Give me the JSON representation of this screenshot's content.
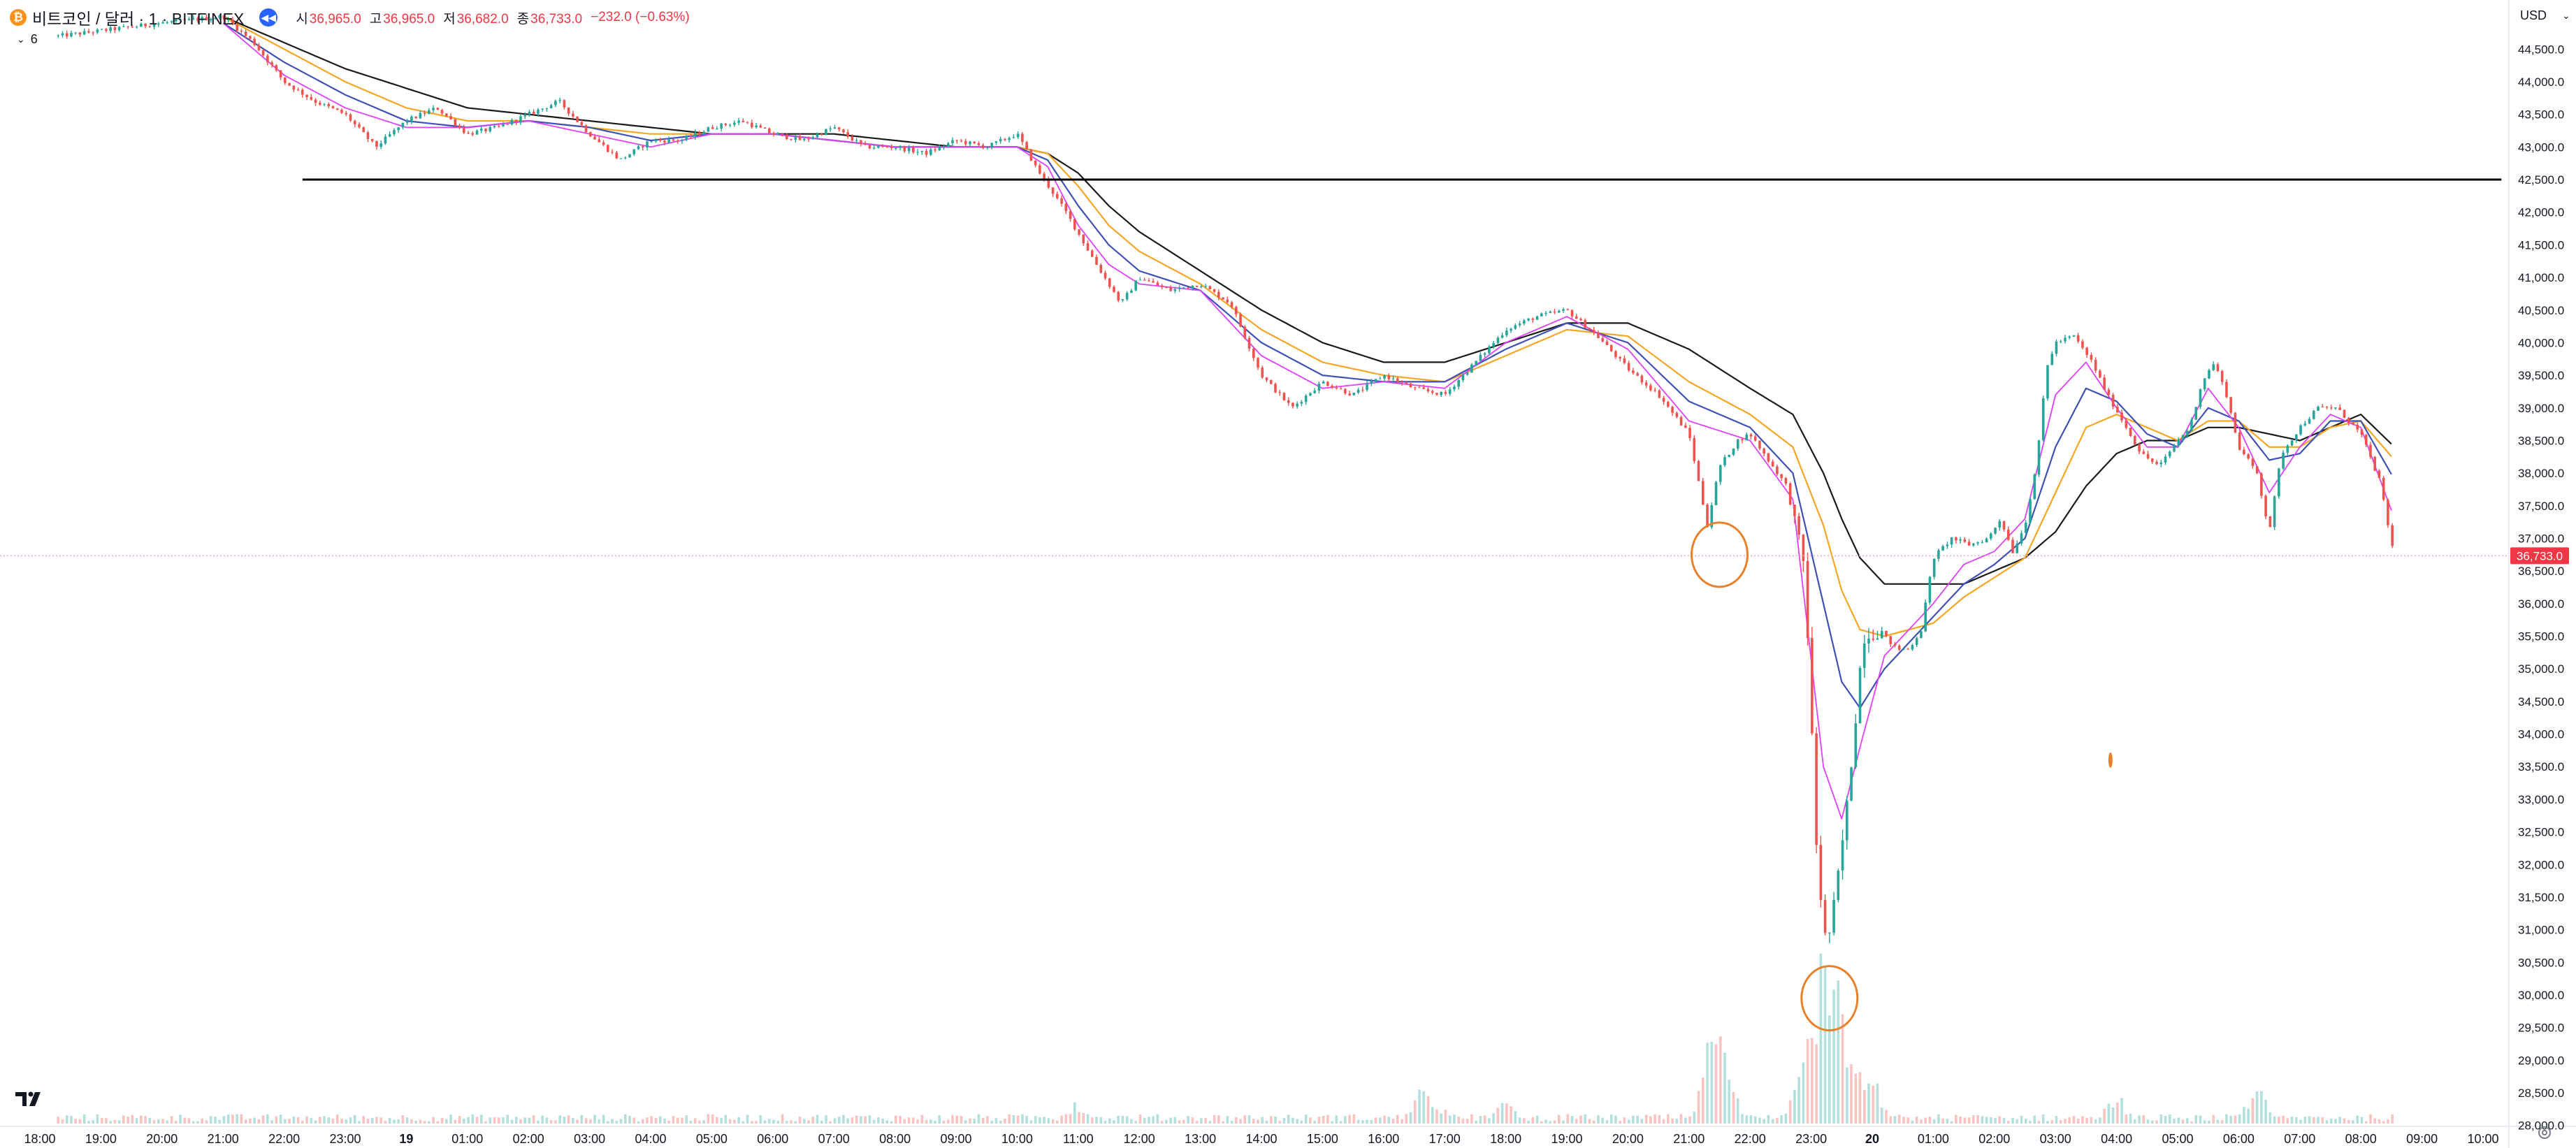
{
  "header": {
    "symbol": "비트코인 / 달러 · 1 · BITFINEX",
    "coin_glyph": "₿",
    "ohlc": [
      {
        "key": "시",
        "value": "36,965.0"
      },
      {
        "key": "고",
        "value": "36,965.0"
      },
      {
        "key": "저",
        "value": "36,682.0"
      },
      {
        "key": "종",
        "value": "36,733.0"
      }
    ],
    "change": "−232.0 (−0.63%)",
    "indicator_count": "6",
    "currency": "USD"
  },
  "colors": {
    "up": "#26a69a",
    "down": "#ef5350",
    "ema_fast": "#e040fb",
    "ema_mid": "#3f51b5",
    "ema_slow": "#f5a623",
    "ema_long": "#1a1a1a",
    "level_line": "#000000",
    "annotation": "#e8802c",
    "price_label": "#f23645"
  },
  "chart_data": {
    "type": "line",
    "title": "",
    "y_ticks": [
      "28,000.0",
      "28,500.0",
      "29,000.0",
      "29,500.0",
      "30,000.0",
      "30,500.0",
      "31,000.0",
      "31,500.0",
      "32,000.0",
      "32,500.0",
      "33,000.0",
      "33,500.0",
      "34,000.0",
      "34,500.0",
      "35,000.0",
      "35,500.0",
      "36,000.0",
      "36,500.0",
      "37,000.0",
      "37,500.0",
      "38,000.0",
      "38,500.0",
      "39,000.0",
      "39,500.0",
      "40,000.0",
      "40,500.0",
      "41,000.0",
      "41,500.0",
      "42,000.0",
      "42,500.0",
      "43,000.0",
      "43,500.0",
      "44,000.0",
      "44,500.0"
    ],
    "x_ticks": [
      "18:00",
      "19:00",
      "20:00",
      "21:00",
      "22:00",
      "23:00",
      "19",
      "01:00",
      "02:00",
      "03:00",
      "04:00",
      "05:00",
      "06:00",
      "07:00",
      "08:00",
      "09:00",
      "10:00",
      "11:00",
      "12:00",
      "13:00",
      "14:00",
      "15:00",
      "16:00",
      "17:00",
      "18:00",
      "19:00",
      "20:00",
      "21:00",
      "22:00",
      "23:00",
      "20",
      "01:00",
      "02:00",
      "03:00",
      "04:00",
      "05:00",
      "06:00",
      "07:00",
      "08:00",
      "09:00",
      "10:00"
    ],
    "ylim": [
      27900,
      44750
    ],
    "price_anchors": [
      [
        0.3,
        44700
      ],
      [
        2,
        44900
      ],
      [
        3,
        45000
      ],
      [
        3.5,
        44600
      ],
      [
        4,
        44000
      ],
      [
        4.5,
        43700
      ],
      [
        5,
        43500
      ],
      [
        5.5,
        43000
      ],
      [
        6,
        43400
      ],
      [
        6.5,
        43600
      ],
      [
        7,
        43200
      ],
      [
        7.5,
        43300
      ],
      [
        8,
        43500
      ],
      [
        8.5,
        43700
      ],
      [
        9,
        43200
      ],
      [
        9.5,
        42800
      ],
      [
        10,
        43100
      ],
      [
        10.5,
        43100
      ],
      [
        11,
        43300
      ],
      [
        11.5,
        43400
      ],
      [
        12,
        43200
      ],
      [
        12.5,
        43100
      ],
      [
        13,
        43300
      ],
      [
        13.5,
        43000
      ],
      [
        14,
        43000
      ],
      [
        14.5,
        42900
      ],
      [
        15,
        43100
      ],
      [
        15.5,
        43000
      ],
      [
        16,
        43200
      ],
      [
        16.3,
        42700
      ],
      [
        16.8,
        42000
      ],
      [
        17.3,
        41200
      ],
      [
        17.7,
        40600
      ],
      [
        18,
        41000
      ],
      [
        18.5,
        40800
      ],
      [
        19,
        40900
      ],
      [
        19.5,
        40600
      ],
      [
        20,
        39500
      ],
      [
        20.5,
        39000
      ],
      [
        21,
        39400
      ],
      [
        21.5,
        39200
      ],
      [
        22,
        39500
      ],
      [
        22.5,
        39300
      ],
      [
        23,
        39200
      ],
      [
        23.5,
        39700
      ],
      [
        24,
        40200
      ],
      [
        24.5,
        40400
      ],
      [
        25,
        40500
      ],
      [
        25.5,
        40100
      ],
      [
        26,
        39600
      ],
      [
        26.5,
        39200
      ],
      [
        27,
        38600
      ],
      [
        27.3,
        37200
      ],
      [
        27.5,
        38100
      ],
      [
        27.8,
        38500
      ],
      [
        28,
        38600
      ],
      [
        28.3,
        38200
      ],
      [
        28.6,
        37800
      ],
      [
        28.9,
        36500
      ],
      [
        29.1,
        32000
      ],
      [
        29.25,
        30700
      ],
      [
        29.4,
        31500
      ],
      [
        29.6,
        33000
      ],
      [
        29.85,
        35500
      ],
      [
        30.1,
        35600
      ],
      [
        30.4,
        35300
      ],
      [
        30.6,
        35300
      ],
      [
        30.8,
        35600
      ],
      [
        31.0,
        36700
      ],
      [
        31.3,
        37000
      ],
      [
        31.6,
        36900
      ],
      [
        31.9,
        37000
      ],
      [
        32.1,
        37300
      ],
      [
        32.3,
        36800
      ],
      [
        32.5,
        37200
      ],
      [
        32.7,
        38200
      ],
      [
        32.85,
        39600
      ],
      [
        33,
        40000
      ],
      [
        33.3,
        40100
      ],
      [
        33.6,
        39700
      ],
      [
        33.85,
        39200
      ],
      [
        34.1,
        38800
      ],
      [
        34.4,
        38300
      ],
      [
        34.7,
        38100
      ],
      [
        35,
        38500
      ],
      [
        35.2,
        38700
      ],
      [
        35.4,
        39400
      ],
      [
        35.6,
        39700
      ],
      [
        35.8,
        39200
      ],
      [
        36,
        38400
      ],
      [
        36.3,
        38000
      ],
      [
        36.5,
        37100
      ],
      [
        36.7,
        38300
      ],
      [
        37,
        38700
      ],
      [
        37.3,
        39000
      ],
      [
        37.6,
        39000
      ],
      [
        38,
        38600
      ],
      [
        38.3,
        37900
      ],
      [
        38.55,
        36700
      ]
    ],
    "ema_fast_anchors": [
      [
        3,
        44900
      ],
      [
        4,
        44100
      ],
      [
        5,
        43600
      ],
      [
        6,
        43300
      ],
      [
        7,
        43300
      ],
      [
        8,
        43400
      ],
      [
        9,
        43200
      ],
      [
        10,
        43000
      ],
      [
        11,
        43200
      ],
      [
        12,
        43200
      ],
      [
        13,
        43100
      ],
      [
        14,
        43000
      ],
      [
        15,
        43000
      ],
      [
        16,
        43000
      ],
      [
        16.5,
        42700
      ],
      [
        17,
        41800
      ],
      [
        17.5,
        41200
      ],
      [
        18,
        40900
      ],
      [
        19,
        40800
      ],
      [
        20,
        39800
      ],
      [
        21,
        39300
      ],
      [
        22,
        39400
      ],
      [
        23,
        39300
      ],
      [
        24,
        40000
      ],
      [
        25,
        40400
      ],
      [
        26,
        39900
      ],
      [
        27,
        38800
      ],
      [
        28,
        38500
      ],
      [
        28.7,
        37600
      ],
      [
        29.2,
        33500
      ],
      [
        29.5,
        32700
      ],
      [
        29.8,
        33800
      ],
      [
        30.2,
        35200
      ],
      [
        31,
        36000
      ],
      [
        31.5,
        36600
      ],
      [
        32,
        36800
      ],
      [
        32.5,
        37300
      ],
      [
        33,
        39200
      ],
      [
        33.5,
        39700
      ],
      [
        34,
        39000
      ],
      [
        34.5,
        38400
      ],
      [
        35,
        38400
      ],
      [
        35.5,
        39300
      ],
      [
        36,
        38700
      ],
      [
        36.5,
        37700
      ],
      [
        37,
        38400
      ],
      [
        37.5,
        38900
      ],
      [
        38,
        38700
      ],
      [
        38.55,
        37300
      ]
    ],
    "ema_mid_anchors": [
      [
        3,
        44900
      ],
      [
        4,
        44300
      ],
      [
        5,
        43800
      ],
      [
        6,
        43400
      ],
      [
        7,
        43300
      ],
      [
        8,
        43400
      ],
      [
        9,
        43300
      ],
      [
        10,
        43100
      ],
      [
        11,
        43200
      ],
      [
        12,
        43200
      ],
      [
        13,
        43100
      ],
      [
        14,
        43000
      ],
      [
        15,
        43000
      ],
      [
        16,
        43000
      ],
      [
        16.5,
        42800
      ],
      [
        17,
        42100
      ],
      [
        17.5,
        41500
      ],
      [
        18,
        41100
      ],
      [
        19,
        40800
      ],
      [
        20,
        40000
      ],
      [
        21,
        39500
      ],
      [
        22,
        39400
      ],
      [
        23,
        39400
      ],
      [
        24,
        39900
      ],
      [
        25,
        40300
      ],
      [
        26,
        40000
      ],
      [
        27,
        39100
      ],
      [
        28,
        38700
      ],
      [
        28.7,
        38000
      ],
      [
        29.2,
        36000
      ],
      [
        29.5,
        34800
      ],
      [
        29.8,
        34400
      ],
      [
        30.2,
        35000
      ],
      [
        31,
        35800
      ],
      [
        31.5,
        36300
      ],
      [
        32,
        36600
      ],
      [
        32.5,
        37000
      ],
      [
        33,
        38400
      ],
      [
        33.5,
        39300
      ],
      [
        34,
        39100
      ],
      [
        34.5,
        38600
      ],
      [
        35,
        38400
      ],
      [
        35.5,
        39000
      ],
      [
        36,
        38800
      ],
      [
        36.5,
        38200
      ],
      [
        37,
        38300
      ],
      [
        37.5,
        38800
      ],
      [
        38,
        38800
      ],
      [
        38.55,
        37900
      ]
    ],
    "ema_slow_anchors": [
      [
        3,
        45000
      ],
      [
        4,
        44500
      ],
      [
        5,
        44000
      ],
      [
        6,
        43600
      ],
      [
        7,
        43400
      ],
      [
        8,
        43400
      ],
      [
        9,
        43300
      ],
      [
        10,
        43200
      ],
      [
        11,
        43200
      ],
      [
        12,
        43200
      ],
      [
        13,
        43100
      ],
      [
        14,
        43000
      ],
      [
        15,
        43000
      ],
      [
        16,
        43000
      ],
      [
        16.5,
        42900
      ],
      [
        17,
        42400
      ],
      [
        17.5,
        41800
      ],
      [
        18,
        41400
      ],
      [
        19,
        40900
      ],
      [
        20,
        40200
      ],
      [
        21,
        39700
      ],
      [
        22,
        39500
      ],
      [
        23,
        39400
      ],
      [
        24,
        39800
      ],
      [
        25,
        40200
      ],
      [
        26,
        40100
      ],
      [
        27,
        39400
      ],
      [
        28,
        38900
      ],
      [
        28.7,
        38400
      ],
      [
        29.2,
        37200
      ],
      [
        29.5,
        36200
      ],
      [
        29.8,
        35600
      ],
      [
        30.2,
        35500
      ],
      [
        31,
        35700
      ],
      [
        31.5,
        36100
      ],
      [
        32,
        36400
      ],
      [
        32.5,
        36700
      ],
      [
        33,
        37700
      ],
      [
        33.5,
        38700
      ],
      [
        34,
        38900
      ],
      [
        34.5,
        38700
      ],
      [
        35,
        38500
      ],
      [
        35.5,
        38800
      ],
      [
        36,
        38800
      ],
      [
        36.5,
        38400
      ],
      [
        37,
        38400
      ],
      [
        37.5,
        38700
      ],
      [
        38,
        38800
      ],
      [
        38.55,
        38200
      ]
    ],
    "ema_long_anchors": [
      [
        3,
        45000
      ],
      [
        4,
        44600
      ],
      [
        5,
        44200
      ],
      [
        6,
        43900
      ],
      [
        7,
        43600
      ],
      [
        8,
        43500
      ],
      [
        9,
        43400
      ],
      [
        10,
        43300
      ],
      [
        11,
        43200
      ],
      [
        12,
        43200
      ],
      [
        13,
        43200
      ],
      [
        14,
        43100
      ],
      [
        15,
        43000
      ],
      [
        16,
        43000
      ],
      [
        16.5,
        42900
      ],
      [
        17,
        42600
      ],
      [
        17.5,
        42100
      ],
      [
        18,
        41700
      ],
      [
        19,
        41100
      ],
      [
        20,
        40500
      ],
      [
        21,
        40000
      ],
      [
        22,
        39700
      ],
      [
        23,
        39700
      ],
      [
        24,
        40000
      ],
      [
        25,
        40300
      ],
      [
        26,
        40300
      ],
      [
        27,
        39900
      ],
      [
        28,
        39300
      ],
      [
        28.7,
        38900
      ],
      [
        29.2,
        38000
      ],
      [
        29.5,
        37300
      ],
      [
        29.8,
        36700
      ],
      [
        30.2,
        36300
      ],
      [
        31,
        36300
      ],
      [
        31.5,
        36300
      ],
      [
        32,
        36500
      ],
      [
        32.5,
        36700
      ],
      [
        33,
        37100
      ],
      [
        33.5,
        37800
      ],
      [
        34,
        38300
      ],
      [
        34.5,
        38500
      ],
      [
        35,
        38500
      ],
      [
        35.5,
        38700
      ],
      [
        36,
        38700
      ],
      [
        36.5,
        38600
      ],
      [
        37,
        38500
      ],
      [
        37.5,
        38700
      ],
      [
        38,
        38900
      ],
      [
        38.55,
        38400
      ]
    ],
    "level_line": {
      "value": 42500,
      "from_hour": 4.3,
      "to_hour": 40.3
    },
    "circles": [
      {
        "hour": 27.5,
        "value": 36750
      },
      {
        "hour": 29.3,
        "value": 29950
      }
    ],
    "small_marker": {
      "hour": 33.9,
      "value": 33600
    },
    "volume_spikes": [
      [
        27.4,
        0.42
      ],
      [
        27.55,
        0.3
      ],
      [
        28.9,
        0.35
      ],
      [
        29.0,
        0.22
      ],
      [
        29.2,
        0.55
      ],
      [
        29.25,
        0.5
      ],
      [
        29.35,
        0.6
      ],
      [
        29.5,
        0.3
      ],
      [
        29.7,
        0.2
      ],
      [
        30.0,
        0.15
      ],
      [
        22.6,
        0.12
      ],
      [
        22.8,
        0.1
      ],
      [
        24.0,
        0.08
      ],
      [
        36.3,
        0.12
      ],
      [
        17.0,
        0.07
      ],
      [
        34.0,
        0.1
      ]
    ],
    "last_price": 36733,
    "last_price_label": "36,733.0"
  }
}
